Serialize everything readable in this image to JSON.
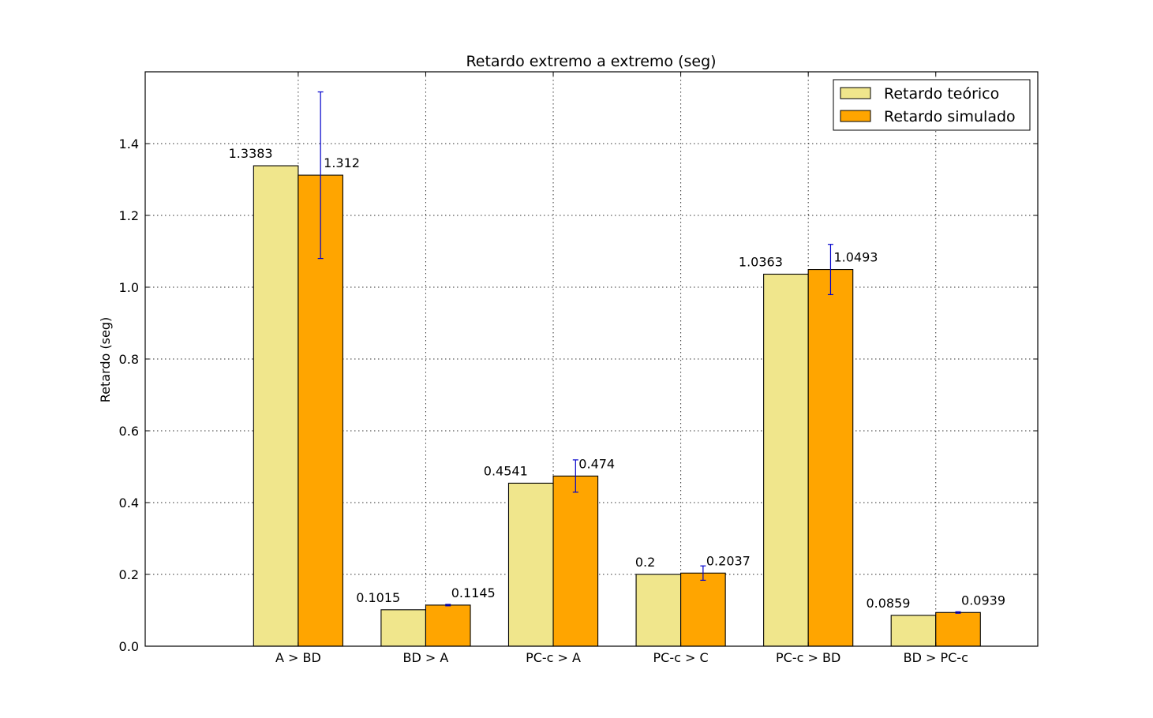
{
  "chart_data": {
    "type": "bar",
    "title": "Retardo extremo a extremo (seg)",
    "xlabel": "",
    "ylabel": "Retardo (seg)",
    "ylim": [
      0,
      1.6
    ],
    "yticks": [
      0.0,
      0.2,
      0.4,
      0.6,
      0.8,
      1.0,
      1.2,
      1.4
    ],
    "ytick_labels": [
      "0.0",
      "0.2",
      "0.4",
      "0.6",
      "0.8",
      "1.0",
      "1.2",
      "1.4"
    ],
    "categories": [
      "A > BD",
      "BD > A",
      "PC-c > A",
      "PC-c > C",
      "PC-c > BD",
      "BD > PC-c"
    ],
    "grid": true,
    "legend_position": "top-right",
    "series": [
      {
        "name": "Retardo teórico",
        "color": "#f0e68c",
        "values": [
          1.3383,
          0.1015,
          0.4541,
          0.2,
          1.0363,
          0.0859
        ],
        "labels": [
          "1.3383",
          "0.1015",
          "0.4541",
          "0.2",
          "1.0363",
          "0.0859"
        ]
      },
      {
        "name": "Retardo simulado",
        "color": "#ffa500",
        "values": [
          1.312,
          0.1145,
          0.474,
          0.2037,
          1.0493,
          0.0939
        ],
        "labels": [
          "1.312",
          "0.1145",
          "0.474",
          "0.2037",
          "1.0493",
          "0.0939"
        ],
        "error": [
          0.232,
          0.002,
          0.045,
          0.02,
          0.07,
          0.002
        ],
        "error_color": "#0000cc"
      }
    ]
  }
}
